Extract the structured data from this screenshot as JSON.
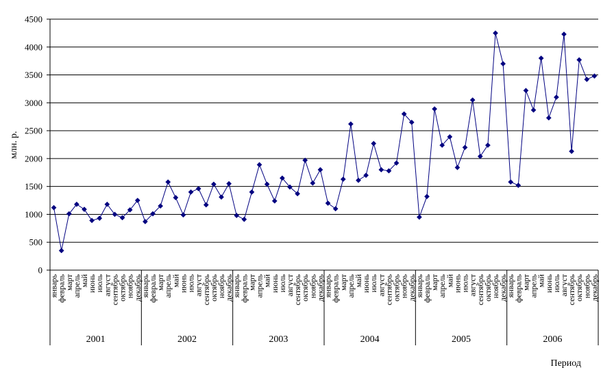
{
  "chart_data": {
    "type": "line",
    "ylabel": "млн. р.",
    "xlabel": "Период",
    "ylim": [
      0,
      4500
    ],
    "yticks": [
      0,
      500,
      1000,
      1500,
      2000,
      2500,
      3000,
      3500,
      4000,
      4500
    ],
    "grid": "horizontal",
    "line_color": "#000080",
    "marker": "diamond",
    "months": [
      "январь",
      "февраль",
      "март",
      "апрель",
      "май",
      "июнь",
      "июль",
      "август",
      "сентябрь",
      "октябрь",
      "ноябрь",
      "декабрь"
    ],
    "years": [
      "2001",
      "2002",
      "2003",
      "2004",
      "2005",
      "2006"
    ],
    "series": [
      {
        "values": [
          1120,
          350,
          1010,
          1180,
          1090,
          890,
          930,
          1180,
          1000,
          940,
          1080,
          1250,
          870,
          1010,
          1150,
          1580,
          1300,
          990,
          1400,
          1460,
          1170,
          1540,
          1310,
          1550,
          980,
          910,
          1400,
          1890,
          1540,
          1240,
          1650,
          1490,
          1370,
          1970,
          1560,
          1800,
          1200,
          1100,
          1630,
          2620,
          1610,
          1700,
          2270,
          1800,
          1780,
          1920,
          2800,
          2650,
          950,
          1320,
          2890,
          2240,
          2390,
          1840,
          2200,
          3050,
          2040,
          2240,
          4250,
          3700,
          1580,
          1520,
          3220,
          2870,
          3800,
          2730,
          3100,
          4230,
          2130,
          3770,
          3420,
          3480
        ]
      }
    ]
  }
}
